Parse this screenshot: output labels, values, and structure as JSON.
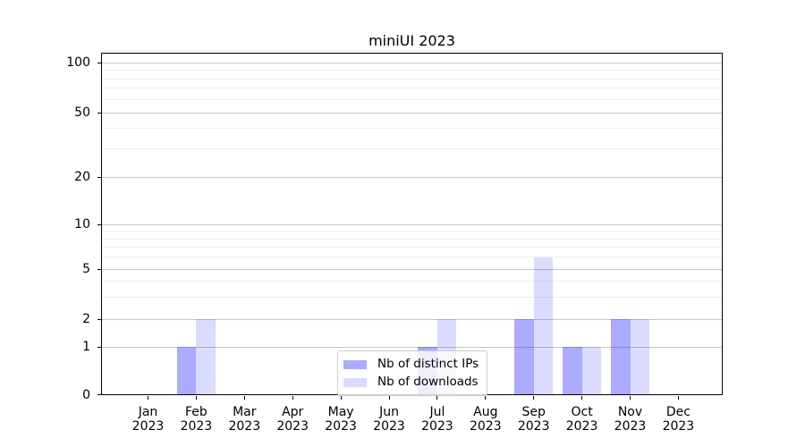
{
  "chart_data": {
    "type": "bar",
    "title": "miniUI 2023",
    "x_months": [
      "Jan",
      "Feb",
      "Mar",
      "Apr",
      "May",
      "Jun",
      "Jul",
      "Aug",
      "Sep",
      "Oct",
      "Nov",
      "Dec"
    ],
    "x_year": "2023",
    "series": [
      {
        "name": "Nb of distinct IPs",
        "color": "rgba(0,0,255,0.33)",
        "values": [
          0,
          1,
          0,
          0,
          0,
          0,
          1,
          0,
          2,
          1,
          2,
          0
        ]
      },
      {
        "name": "Nb of downloads",
        "color": "rgba(0,0,255,0.14)",
        "values": [
          0,
          2,
          0,
          0,
          0,
          0,
          2,
          0,
          6,
          1,
          2,
          0
        ]
      }
    ],
    "yaxis": {
      "scale": "log above 1, linear 0-1",
      "tick_labels": [
        "0",
        "1",
        "2",
        "5",
        "10",
        "20",
        "50",
        "100"
      ],
      "tick_values": [
        0,
        1,
        2,
        5,
        10,
        20,
        50,
        100
      ],
      "minor_gridline_values": [
        3,
        4,
        6,
        7,
        8,
        9,
        30,
        40,
        60,
        70,
        80,
        90
      ]
    },
    "grid": true,
    "legend": {
      "position": "lower center",
      "entries": [
        "Nb of distinct IPs",
        "Nb of downloads"
      ]
    }
  }
}
